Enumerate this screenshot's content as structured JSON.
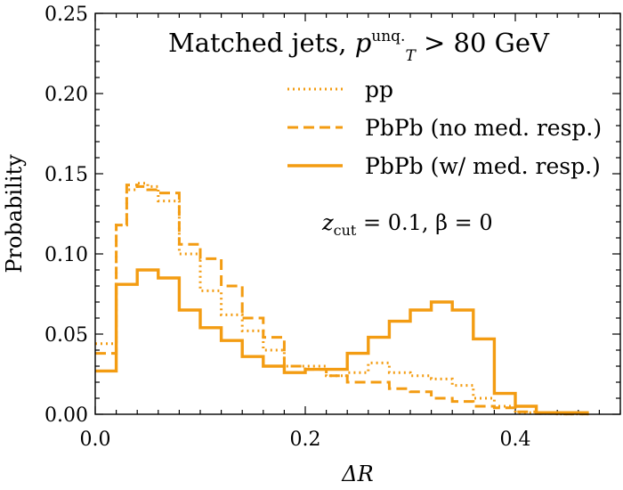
{
  "chart_data": {
    "type": "line",
    "style": "step histogram",
    "title": {
      "prefix": "Matched jets, ",
      "var": "p",
      "sub": "T",
      "sup": "unq.",
      "suffix": " > 80 GeV"
    },
    "xlabel": "ΔR",
    "ylabel": "Probability",
    "xlim": [
      0,
      0.5
    ],
    "ylim": [
      0,
      0.25
    ],
    "xticks": [
      0.0,
      0.2,
      0.4
    ],
    "xtick_labels": [
      "0.0",
      "0.2",
      "0.4"
    ],
    "yticks": [
      0.0,
      0.05,
      0.1,
      0.15,
      0.2,
      0.25
    ],
    "ytick_labels": [
      "0.00",
      "0.05",
      "0.10",
      "0.15",
      "0.20",
      "0.25"
    ],
    "legend_position": "upper-right",
    "annotation": {
      "var": "z",
      "sub": "cut",
      "rest": " = 0.1, β = 0"
    },
    "color": "#f39c12",
    "series": [
      {
        "name": "pp",
        "linestyle": "dotted",
        "edges": [
          0.0,
          0.01,
          0.02,
          0.03,
          0.04,
          0.05,
          0.06,
          0.08,
          0.1,
          0.12,
          0.14,
          0.16,
          0.18,
          0.2,
          0.22,
          0.24,
          0.26,
          0.28,
          0.3,
          0.32,
          0.34,
          0.36,
          0.38,
          0.4,
          0.42,
          0.44,
          0.47
        ],
        "values": [
          0.044,
          0.044,
          0.118,
          0.14,
          0.144,
          0.142,
          0.133,
          0.1,
          0.077,
          0.062,
          0.052,
          0.04,
          0.03,
          0.03,
          0.024,
          0.026,
          0.032,
          0.026,
          0.024,
          0.022,
          0.018,
          0.01,
          0.005,
          0.001,
          0.0005,
          0.0002
        ]
      },
      {
        "name": "PbPb (no med. resp.)",
        "linestyle": "dashed",
        "edges": [
          0.0,
          0.01,
          0.02,
          0.03,
          0.04,
          0.05,
          0.06,
          0.08,
          0.1,
          0.12,
          0.14,
          0.16,
          0.18,
          0.2,
          0.22,
          0.24,
          0.26,
          0.28,
          0.3,
          0.32,
          0.34,
          0.36,
          0.38,
          0.4,
          0.42,
          0.44,
          0.47
        ],
        "values": [
          0.038,
          0.038,
          0.118,
          0.143,
          0.142,
          0.14,
          0.138,
          0.106,
          0.097,
          0.08,
          0.06,
          0.048,
          0.03,
          0.028,
          0.024,
          0.02,
          0.02,
          0.016,
          0.014,
          0.01,
          0.008,
          0.005,
          0.004,
          0.0015,
          0.0005,
          0.0002
        ]
      },
      {
        "name": "PbPb (w/ med. resp.)",
        "linestyle": "solid",
        "edges": [
          0.0,
          0.01,
          0.02,
          0.03,
          0.04,
          0.05,
          0.06,
          0.08,
          0.1,
          0.12,
          0.14,
          0.16,
          0.18,
          0.2,
          0.22,
          0.24,
          0.26,
          0.28,
          0.3,
          0.32,
          0.34,
          0.36,
          0.38,
          0.4,
          0.42,
          0.44,
          0.47
        ],
        "values": [
          0.027,
          0.027,
          0.081,
          0.081,
          0.09,
          0.09,
          0.085,
          0.065,
          0.054,
          0.046,
          0.036,
          0.03,
          0.026,
          0.028,
          0.028,
          0.038,
          0.048,
          0.058,
          0.065,
          0.07,
          0.065,
          0.047,
          0.013,
          0.005,
          0.001,
          0.001
        ]
      }
    ]
  }
}
